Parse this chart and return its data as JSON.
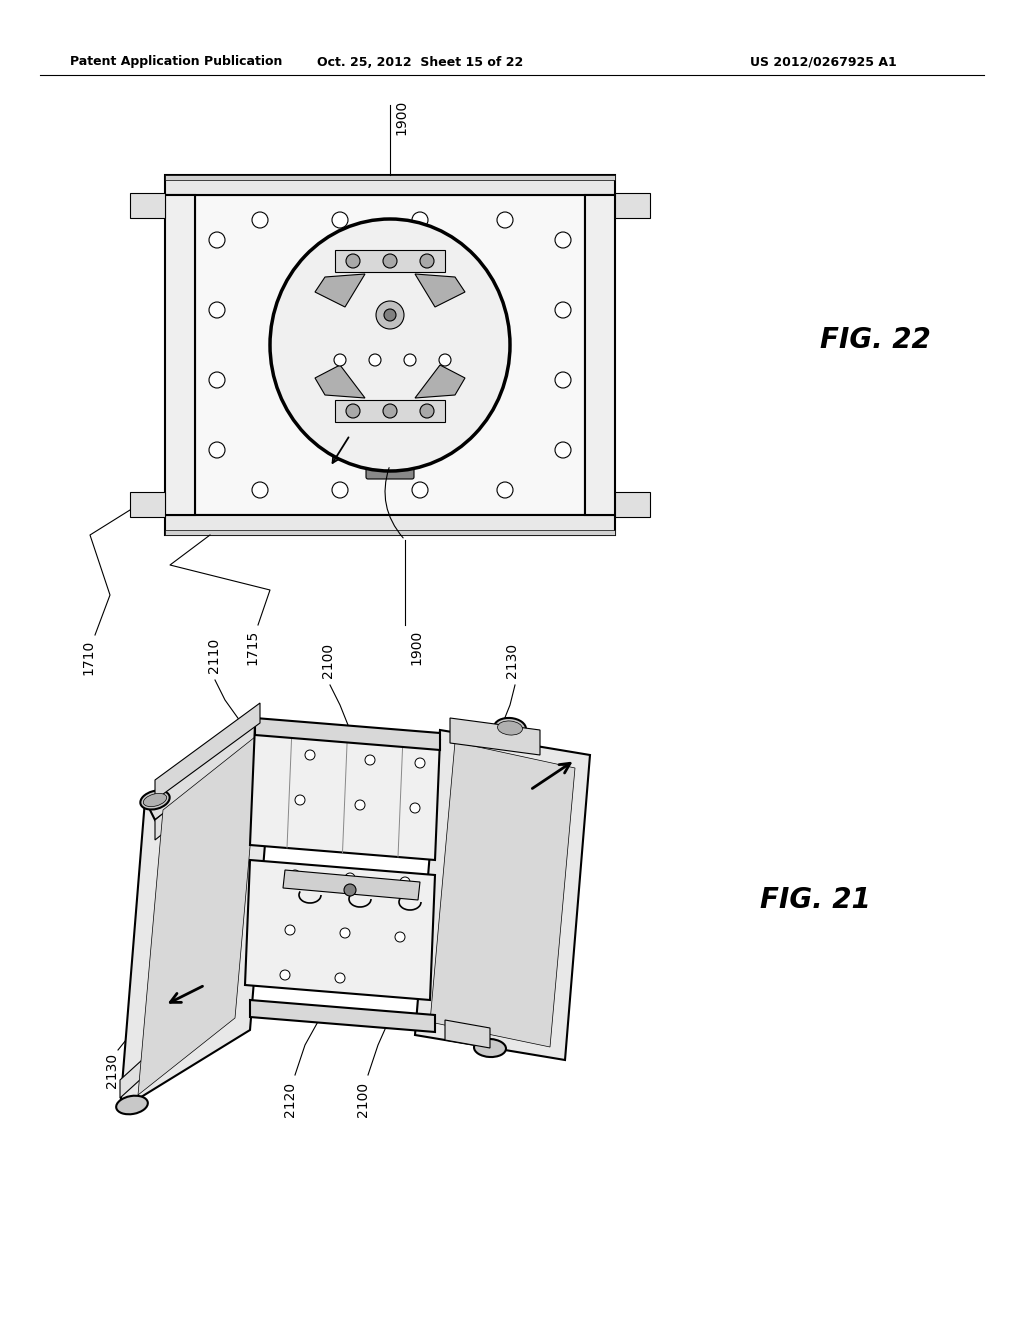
{
  "background_color": "#ffffff",
  "header_left": "Patent Application Publication",
  "header_mid": "Oct. 25, 2012  Sheet 15 of 22",
  "header_right": "US 2012/0267925 A1",
  "fig22_label": "FIG. 22",
  "fig21_label": "FIG. 21",
  "line_color": "#000000",
  "fill_light": "#f5f5f5",
  "fill_mid": "#e0e0e0",
  "fill_dark": "#c0c0c0"
}
